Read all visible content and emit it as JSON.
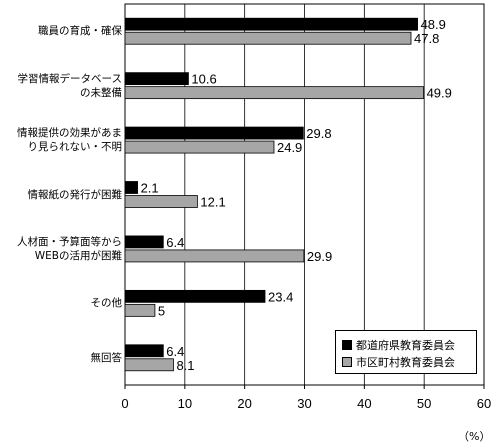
{
  "chart_data": {
    "type": "bar",
    "orientation": "horizontal",
    "categories": [
      "職員の育成・確保",
      "学習情報データベース\nの未整備",
      "情報提供の効果があま\nり見られない・不明",
      "情報紙の発行が困難",
      "人材面・予算面等から\nWEBの活用が困難",
      "その他",
      "無回答"
    ],
    "series": [
      {
        "name": "都道府県教育委員会",
        "color": "#000000",
        "values": [
          48.9,
          10.6,
          29.8,
          2.1,
          6.4,
          23.4,
          6.4
        ],
        "labels": [
          "48.9",
          "10.6",
          "29.8",
          "2.1",
          "6.4",
          "23.4",
          "6.4"
        ]
      },
      {
        "name": "市区町村教育委員会",
        "color": "#a6a6a6",
        "values": [
          47.8,
          49.9,
          24.9,
          12.1,
          29.9,
          5,
          8.1
        ],
        "labels": [
          "47.8",
          "49.9",
          "24.9",
          "12.1",
          "29.9",
          "5",
          "8.1"
        ]
      }
    ],
    "xlim": [
      0,
      60
    ],
    "xticks": [
      "0",
      "10",
      "20",
      "30",
      "40",
      "50",
      "60"
    ],
    "xunit": "（%）",
    "grid": true,
    "legend_position": "bottom-right"
  }
}
